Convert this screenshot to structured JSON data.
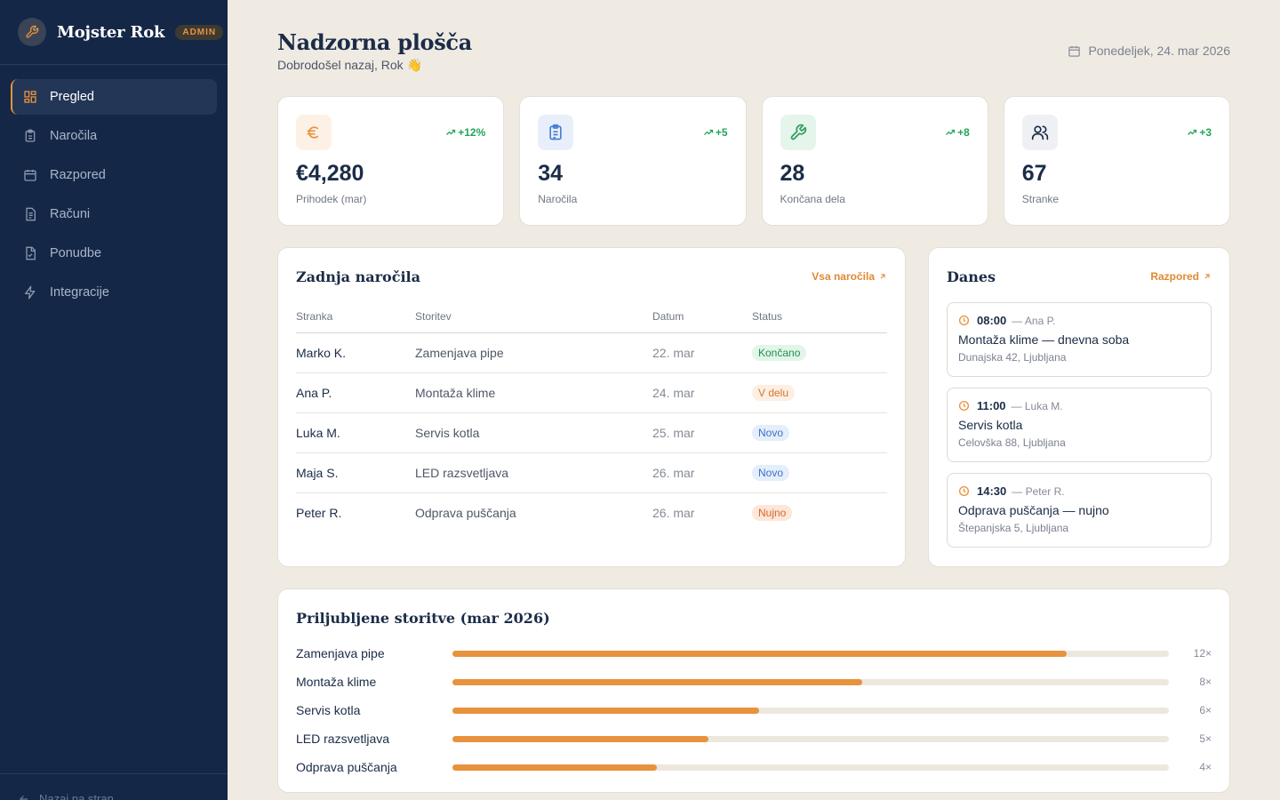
{
  "brand": {
    "name": "Mojster Rok",
    "badge": "ADMIN"
  },
  "nav": [
    {
      "label": "Pregled",
      "icon": "dashboard-icon",
      "active": true
    },
    {
      "label": "Naročila",
      "icon": "clipboard-icon",
      "active": false
    },
    {
      "label": "Razpored",
      "icon": "calendar-icon",
      "active": false
    },
    {
      "label": "Računi",
      "icon": "invoice-icon",
      "active": false
    },
    {
      "label": "Ponudbe",
      "icon": "document-icon",
      "active": false
    },
    {
      "label": "Integracije",
      "icon": "lightning-icon",
      "active": false
    }
  ],
  "sidebar_footer": {
    "label": "Nazaj na stran"
  },
  "header": {
    "title": "Nadzorna plošča",
    "subtitle": "Dobrodošel nazaj, Rok 👋",
    "date": "Ponedeljek, 24. mar 2026"
  },
  "stats": [
    {
      "value": "€4,280",
      "label": "Prihodek (mar)",
      "trend": "+12%",
      "icon": "euro-icon",
      "icon_color": "#e8923d",
      "icon_bg": "#fdf1e6"
    },
    {
      "value": "34",
      "label": "Naročila",
      "trend": "+5",
      "icon": "clipboard-icon",
      "icon_color": "#4a7fd6",
      "icon_bg": "#e8effb"
    },
    {
      "value": "28",
      "label": "Končana dela",
      "trend": "+8",
      "icon": "wrench-icon",
      "icon_color": "#2e9c5a",
      "icon_bg": "#e6f5ec"
    },
    {
      "value": "67",
      "label": "Stranke",
      "trend": "+3",
      "icon": "users-icon",
      "icon_color": "#1b2c47",
      "icon_bg": "#eef0f3"
    }
  ],
  "orders": {
    "title": "Zadnja naročila",
    "link": "Vsa naročila",
    "columns": [
      "Stranka",
      "Storitev",
      "Datum",
      "Status"
    ],
    "rows": [
      {
        "client": "Marko K.",
        "service": "Zamenjava pipe",
        "date": "22. mar",
        "status": "Končano",
        "status_bg": "#e2f5e9",
        "status_color": "#23914f"
      },
      {
        "client": "Ana P.",
        "service": "Montaža klime",
        "date": "24. mar",
        "status": "V delu",
        "status_bg": "#fcefe3",
        "status_color": "#d6772a"
      },
      {
        "client": "Luka M.",
        "service": "Servis kotla",
        "date": "25. mar",
        "status": "Novo",
        "status_bg": "#e5eefb",
        "status_color": "#3d72c9"
      },
      {
        "client": "Maja S.",
        "service": "LED razsvetljava",
        "date": "26. mar",
        "status": "Novo",
        "status_bg": "#e5eefb",
        "status_color": "#3d72c9"
      },
      {
        "client": "Peter R.",
        "service": "Odprava puščanja",
        "date": "26. mar",
        "status": "Nujno",
        "status_bg": "#fde6da",
        "status_color": "#d9662b"
      }
    ]
  },
  "today": {
    "title": "Danes",
    "link": "Razpored",
    "appointments": [
      {
        "time": "08:00",
        "client": "— Ana P.",
        "title": "Montaža klime — dnevna soba",
        "address": "Dunajska 42, Ljubljana"
      },
      {
        "time": "11:00",
        "client": "— Luka M.",
        "title": "Servis kotla",
        "address": "Celovška 88, Ljubljana"
      },
      {
        "time": "14:30",
        "client": "— Peter R.",
        "title": "Odprava puščanja — nujno",
        "address": "Štepanjska 5, Ljubljana"
      }
    ]
  },
  "popular": {
    "title": "Priljubljene storitve (mar 2026)",
    "max": 14,
    "items": [
      {
        "label": "Zamenjava pipe",
        "value": 12,
        "count": "12×"
      },
      {
        "label": "Montaža klime",
        "value": 8,
        "count": "8×"
      },
      {
        "label": "Servis kotla",
        "value": 6,
        "count": "6×"
      },
      {
        "label": "LED razsvetljava",
        "value": 5,
        "count": "5×"
      },
      {
        "label": "Odprava puščanja",
        "value": 4,
        "count": "4×"
      }
    ]
  },
  "colors": {
    "sidebar": "#142747",
    "accent": "#e8923d",
    "background": "#efebe3"
  }
}
